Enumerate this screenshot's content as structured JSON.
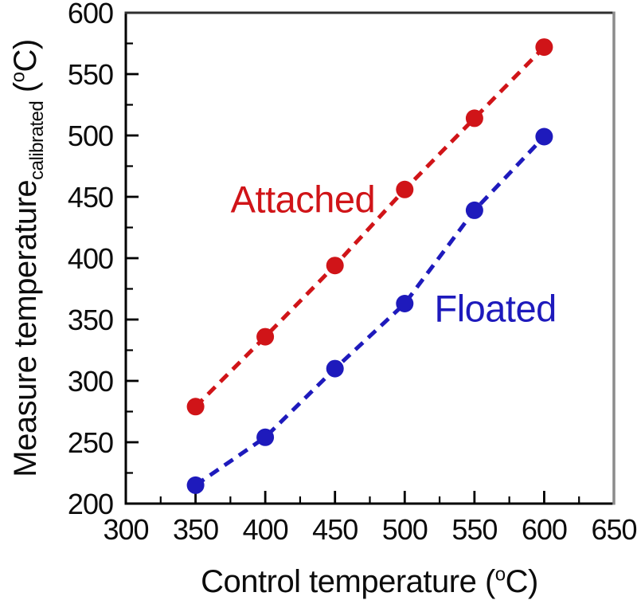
{
  "chart_data": {
    "type": "line",
    "title": "",
    "xlabel": "Control temperature (°C)",
    "ylabel": "Measure temperature_calibrated (°C)",
    "xlim": [
      300,
      650
    ],
    "ylim": [
      200,
      600
    ],
    "x": [
      350,
      400,
      450,
      500,
      550,
      600
    ],
    "series": [
      {
        "name": "Attached",
        "color": "#d01418",
        "line_style": "dashed",
        "marker": "filled-circle",
        "values": [
          279,
          336,
          394,
          456,
          514,
          572
        ]
      },
      {
        "name": "Floated",
        "color": "#1e1abc",
        "line_style": "dashed",
        "marker": "filled-circle",
        "values": [
          215,
          254,
          310,
          363,
          439,
          499
        ]
      }
    ],
    "x_major_ticks": [
      300,
      350,
      400,
      450,
      500,
      550,
      600,
      650
    ],
    "x_minor_ticks": [
      325,
      375,
      425,
      475,
      525,
      575,
      625
    ],
    "y_major_ticks": [
      200,
      250,
      300,
      350,
      400,
      450,
      500,
      550,
      600
    ],
    "y_minor_ticks": [
      225,
      275,
      325,
      375,
      425,
      475,
      525,
      575
    ],
    "grid": false,
    "legend_position": "inline-annotations",
    "annotations": [
      {
        "text": "Attached",
        "color": "#d01418",
        "x": 427,
        "y": 448
      },
      {
        "text": "Floated",
        "color": "#1e1abc",
        "x": 565,
        "y": 359
      }
    ]
  },
  "axes": {
    "x": {
      "title_main": "Control temperature",
      "unit_open": " (",
      "unit_sup": "o",
      "unit_close": "C)"
    },
    "y": {
      "title_main": "Measure temperature",
      "title_sub": "calibrated",
      "unit_open": " (",
      "unit_sup": "o",
      "unit_close": "C)"
    }
  },
  "style": {
    "background": "#ffffff",
    "axis_color": "#000000",
    "frame_top_color": "#2f2f2f",
    "frame_right_color": "#8c8c8c",
    "text_color": "#0c0c0c"
  }
}
